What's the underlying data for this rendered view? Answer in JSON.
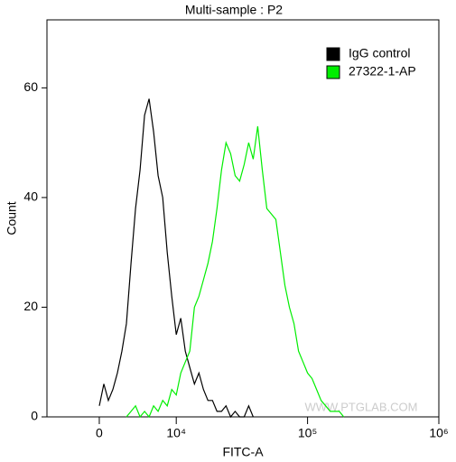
{
  "chart_data": {
    "type": "line",
    "title": "Multi-sample : P2",
    "x_label": "FITC-A",
    "y_label": "Count",
    "watermark": "WWW.PTGLAB.COM",
    "xscale": "logicle",
    "xlim": [
      -6800,
      1000000
    ],
    "ylim": [
      0,
      72.4
    ],
    "xticks": [
      0,
      {
        "value": 10000,
        "label": "10⁴"
      },
      {
        "value": 100000,
        "label": "10⁵"
      },
      {
        "value": 1000000,
        "label": "10⁶"
      }
    ],
    "yticks": [
      0,
      20,
      40,
      60
    ],
    "legend": "top-right",
    "x": [
      0,
      588,
      1176,
      1765,
      2353,
      2941,
      3529,
      4118,
      4706,
      5294,
      5882,
      6471,
      7059,
      7647,
      8235,
      8824,
      9412,
      10000,
      10830,
      11720,
      12690,
      13740,
      14870,
      16100,
      17430,
      18870,
      20430,
      22120,
      23950,
      25930,
      28070,
      30390,
      32900,
      35620,
      38570,
      41750,
      45200,
      48940,
      52980,
      57360,
      62100,
      67230,
      72790,
      78800,
      85310,
      92360,
      100000,
      108300,
      117200,
      126900,
      137400,
      148700,
      161000,
      174300,
      188700
    ],
    "series": [
      {
        "name": "IgG control",
        "color": "#000000",
        "values": [
          2,
          6,
          3,
          5,
          8,
          12,
          17,
          28,
          38,
          45,
          55,
          58,
          52,
          44,
          40,
          30,
          22,
          15,
          18,
          12,
          9,
          6,
          8,
          5,
          3,
          3,
          1,
          1,
          2,
          0,
          1,
          0,
          0,
          2,
          0,
          null,
          null,
          null,
          null,
          null,
          null,
          null,
          null,
          null,
          null,
          null,
          null,
          null,
          null,
          null,
          null,
          null,
          null,
          null,
          null
        ]
      },
      {
        "name": "27322-1-AP",
        "color": "#00ee00",
        "values": [
          null,
          null,
          null,
          null,
          null,
          null,
          0,
          1,
          2,
          0,
          1,
          0,
          2,
          1,
          3,
          2,
          5,
          4,
          8,
          10,
          12,
          20,
          22,
          25,
          28,
          32,
          38,
          45,
          50,
          48,
          44,
          43,
          46,
          50,
          47,
          53,
          45,
          38,
          37,
          36,
          30,
          24,
          20,
          17,
          12,
          10,
          8,
          7,
          5,
          3,
          2,
          1,
          1,
          1,
          0
        ]
      }
    ]
  }
}
